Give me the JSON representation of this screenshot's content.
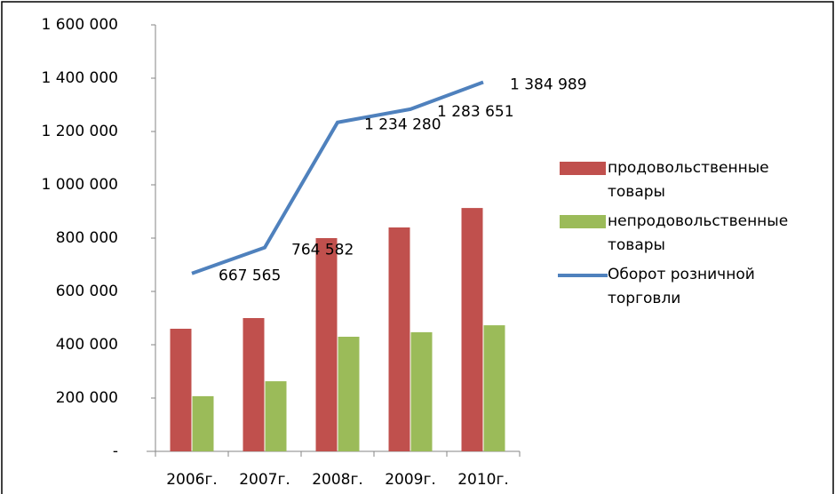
{
  "chart_data": {
    "type": "bar_line",
    "categories": [
      "2006г.",
      "2007г.",
      "2008г.",
      "2009г.",
      "2010г."
    ],
    "series": [
      {
        "name": "продовольственные товары",
        "type": "bar",
        "color": "#c0504d",
        "values": [
          460000,
          500000,
          800000,
          840000,
          913000
        ]
      },
      {
        "name": "непродовольственные товары",
        "type": "bar",
        "color": "#9bbb59",
        "values": [
          207000,
          263000,
          430000,
          447000,
          473000
        ]
      },
      {
        "name": "Оборот розничной торговли",
        "type": "line",
        "color": "#4f81bd",
        "values": [
          667565,
          764582,
          1234280,
          1283651,
          1384989
        ],
        "value_labels": [
          "667 565",
          "764 582",
          "1 234 280",
          "1 283 651",
          "1 384 989"
        ]
      }
    ],
    "ylim": [
      0,
      1600000
    ],
    "yticks": [
      {
        "value": 0,
        "label": "-"
      },
      {
        "value": 200000,
        "label": "200 000"
      },
      {
        "value": 400000,
        "label": "400 000"
      },
      {
        "value": 600000,
        "label": "600 000"
      },
      {
        "value": 800000,
        "label": "800 000"
      },
      {
        "value": 1000000,
        "label": "1 000 000"
      },
      {
        "value": 1200000,
        "label": "1 200 000"
      },
      {
        "value": 1400000,
        "label": "1 400 000"
      },
      {
        "value": 1600000,
        "label": "1 600 000"
      }
    ],
    "legend": "right",
    "grid": false
  }
}
